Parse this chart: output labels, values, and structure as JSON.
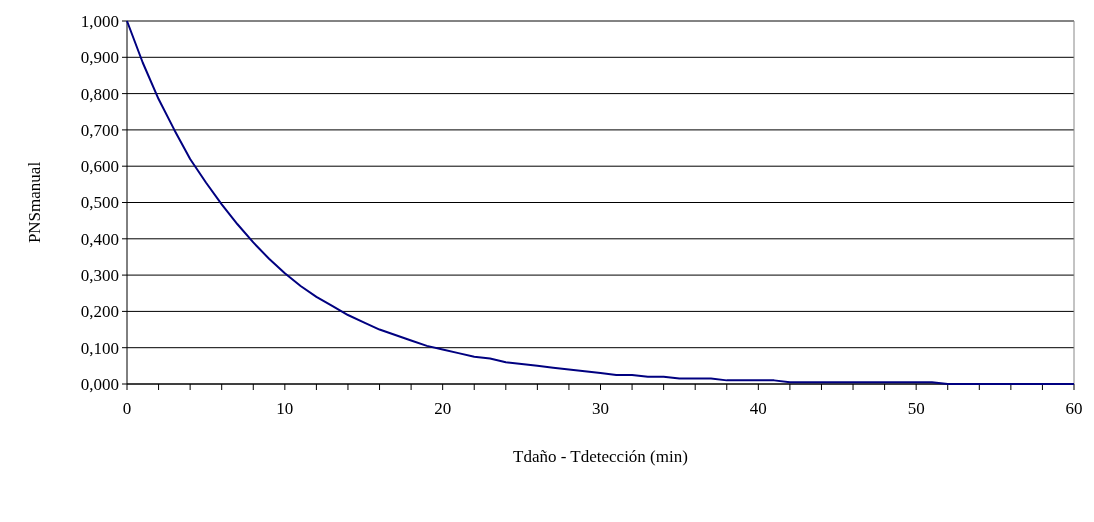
{
  "chart_data": {
    "type": "line",
    "xlabel": "Tdaño - Tdetección (min)",
    "ylabel": "PNSmanual",
    "x": [
      0,
      1,
      2,
      3,
      4,
      5,
      6,
      7,
      8,
      9,
      10,
      11,
      12,
      13,
      14,
      15,
      16,
      17,
      18,
      19,
      20,
      21,
      22,
      23,
      24,
      25,
      26,
      27,
      28,
      29,
      30,
      31,
      32,
      33,
      34,
      35,
      36,
      37,
      38,
      39,
      40,
      41,
      42,
      43,
      44,
      45,
      46,
      47,
      48,
      49,
      50,
      51,
      52,
      53,
      54,
      55,
      56,
      57,
      58,
      59,
      60
    ],
    "series": [
      {
        "color": "#000080",
        "values": [
          1.0,
          0.885,
          0.785,
          0.7,
          0.62,
          0.555,
          0.495,
          0.44,
          0.39,
          0.345,
          0.305,
          0.27,
          0.24,
          0.215,
          0.19,
          0.17,
          0.15,
          0.135,
          0.12,
          0.105,
          0.095,
          0.085,
          0.075,
          0.07,
          0.06,
          0.055,
          0.05,
          0.045,
          0.04,
          0.035,
          0.03,
          0.025,
          0.025,
          0.02,
          0.02,
          0.015,
          0.015,
          0.015,
          0.01,
          0.01,
          0.01,
          0.01,
          0.005,
          0.005,
          0.005,
          0.005,
          0.005,
          0.005,
          0.005,
          0.005,
          0.005,
          0.005,
          0,
          0,
          0,
          0,
          0,
          0,
          0,
          0,
          0
        ]
      }
    ],
    "xlim": [
      0,
      60
    ],
    "xticks": [
      0,
      {
        "value": 2,
        "label": null
      },
      {
        "value": 4,
        "label": null
      },
      {
        "value": 6,
        "label": null
      },
      {
        "value": 8,
        "label": null
      },
      10,
      {
        "value": 12,
        "label": null
      },
      {
        "value": 14,
        "label": null
      },
      {
        "value": 16,
        "label": null
      },
      {
        "value": 18,
        "label": null
      },
      20,
      {
        "value": 22,
        "label": null
      },
      {
        "value": 24,
        "label": null
      },
      {
        "value": 26,
        "label": null
      },
      {
        "value": 28,
        "label": null
      },
      30,
      {
        "value": 32,
        "label": null
      },
      {
        "value": 34,
        "label": null
      },
      {
        "value": 36,
        "label": null
      },
      {
        "value": 38,
        "label": null
      },
      40,
      {
        "value": 42,
        "label": null
      },
      {
        "value": 44,
        "label": null
      },
      {
        "value": 46,
        "label": null
      },
      {
        "value": 48,
        "label": null
      },
      50,
      {
        "value": 52,
        "label": null
      },
      {
        "value": 54,
        "label": null
      },
      {
        "value": 56,
        "label": null
      },
      {
        "value": 58,
        "label": null
      },
      60
    ],
    "ylim": [
      0,
      1
    ],
    "yticks": [
      {
        "value": 0,
        "label": "0,000"
      },
      {
        "value": 0.1,
        "label": "0,100"
      },
      {
        "value": 0.2,
        "label": "0,200"
      },
      {
        "value": 0.3,
        "label": "0,300"
      },
      {
        "value": 0.4,
        "label": "0,400"
      },
      {
        "value": 0.5,
        "label": "0,500"
      },
      {
        "value": 0.6,
        "label": "0,600"
      },
      {
        "value": 0.7,
        "label": "0,700"
      },
      {
        "value": 0.8,
        "label": "0,800"
      },
      {
        "value": 0.9,
        "label": "0,900"
      },
      {
        "value": 1,
        "label": "1,000"
      }
    ],
    "grid": "y",
    "marker": "none",
    "line_style": "solid"
  }
}
